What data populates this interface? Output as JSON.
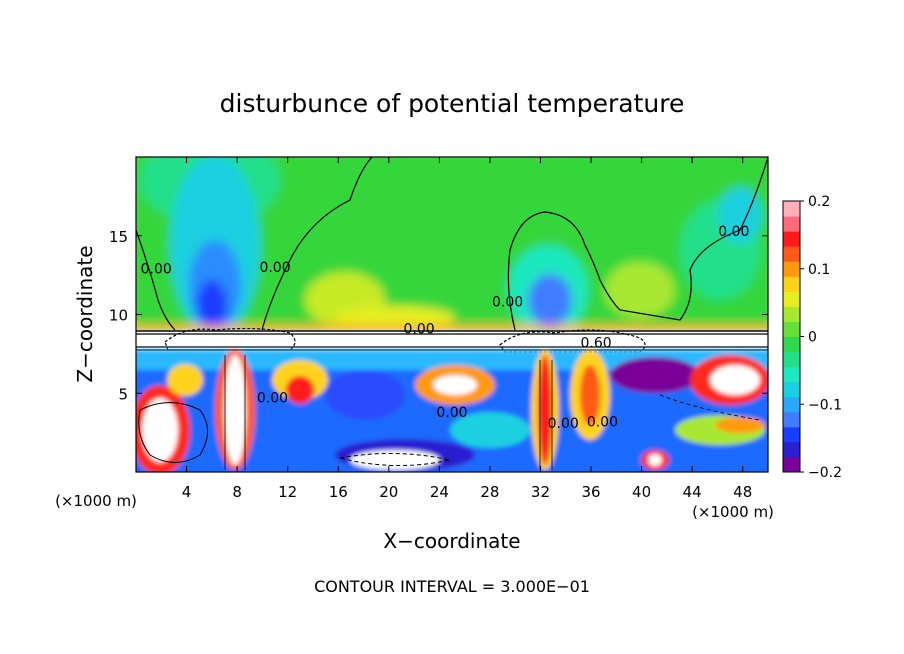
{
  "chart_data": {
    "type": "heatmap",
    "title": "disturbunce of potential temperature",
    "xlabel": "X−coordinate",
    "ylabel": "Z−coordinate",
    "x_unit_left": "(×1000 m)",
    "x_unit_right": "(×1000 m)",
    "footer": "CONTOUR INTERVAL = 3.000E−01",
    "xlim": [
      0,
      50
    ],
    "ylim": [
      0,
      20
    ],
    "x_ticks": [
      4,
      8,
      12,
      16,
      20,
      24,
      28,
      32,
      36,
      40,
      44,
      48
    ],
    "x_tick_labels": [
      "4",
      "8",
      "12",
      "16",
      "20",
      "24",
      "28",
      "32",
      "36",
      "40",
      "44",
      "48"
    ],
    "y_ticks": [
      5,
      10,
      15
    ],
    "y_tick_labels": [
      "5",
      "10",
      "15"
    ],
    "colorbar": {
      "range": [
        -0.2,
        0.2
      ],
      "ticks": [
        0.2,
        0.1,
        0,
        -0.1,
        -0.2
      ],
      "tick_labels": [
        "0.2",
        "0.1",
        "0",
        "−0.1",
        "−0.2"
      ],
      "colors": [
        "#7a0099",
        "#2b1fcf",
        "#1a3dff",
        "#3f7cff",
        "#2aa8ff",
        "#1ad0e0",
        "#1ee8c0",
        "#20e08a",
        "#30d850",
        "#66e038",
        "#a8e830",
        "#e6ee22",
        "#ffd21a",
        "#ff9a10",
        "#ff5a18",
        "#ff1a1a",
        "#ff6a7a",
        "#ffb0b8"
      ]
    },
    "contour_labels": [
      {
        "text": "0.00",
        "x": 1.6,
        "y": 12.6
      },
      {
        "text": "0.00",
        "x": 11.0,
        "y": 12.7
      },
      {
        "text": "0.00",
        "x": 29.4,
        "y": 10.5
      },
      {
        "text": "0.00",
        "x": 47.3,
        "y": 15.0
      },
      {
        "text": "0.00",
        "x": 22.4,
        "y": 8.8
      },
      {
        "text": "0.60",
        "x": 36.4,
        "y": 7.9
      },
      {
        "text": "0.00",
        "x": 10.8,
        "y": 4.4
      },
      {
        "text": "0.00",
        "x": 25.0,
        "y": 3.5
      },
      {
        "text": "0.00",
        "x": 33.8,
        "y": 2.8
      },
      {
        "text": "0.00",
        "x": 36.9,
        "y": 2.9
      }
    ]
  }
}
